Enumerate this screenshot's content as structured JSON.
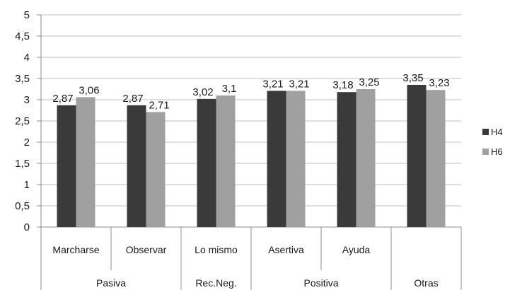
{
  "chart_data": {
    "type": "bar",
    "title": "",
    "xlabel": "",
    "ylabel": "",
    "categories": [
      "Marcharse",
      "Observar",
      "Lo mismo",
      "Asertiva",
      "Ayuda",
      ""
    ],
    "groups": [
      {
        "label": "Pasiva",
        "categories": [
          "Marcharse",
          "Observar"
        ]
      },
      {
        "label": "Rec.Neg.",
        "categories": [
          "Lo mismo"
        ]
      },
      {
        "label": "Positiva",
        "categories": [
          "Asertiva",
          "Ayuda"
        ]
      },
      {
        "label": "Otras",
        "categories": [
          ""
        ]
      }
    ],
    "series": [
      {
        "name": "H4",
        "values": [
          2.87,
          2.87,
          3.02,
          3.21,
          3.18,
          3.35
        ],
        "labels": [
          "2,87",
          "2,87",
          "3,02",
          "3,21",
          "3,18",
          "3,35"
        ],
        "color": "#3a3a3a"
      },
      {
        "name": "H6",
        "values": [
          3.06,
          2.71,
          3.1,
          3.21,
          3.25,
          3.23
        ],
        "labels": [
          "3,06",
          "2,71",
          "3,1",
          "3,21",
          "3,25",
          "3,23"
        ],
        "color": "#a0a0a0"
      }
    ],
    "ylim": [
      0,
      5
    ],
    "yticks": [
      0,
      0.5,
      1,
      1.5,
      2,
      2.5,
      3,
      3.5,
      4,
      4.5,
      5
    ],
    "ytick_labels": [
      "0",
      "0,5",
      "1",
      "1,5",
      "2",
      "2,5",
      "3",
      "3,5",
      "4",
      "4,5",
      "5"
    ],
    "grid": true,
    "legend_position": "right"
  }
}
